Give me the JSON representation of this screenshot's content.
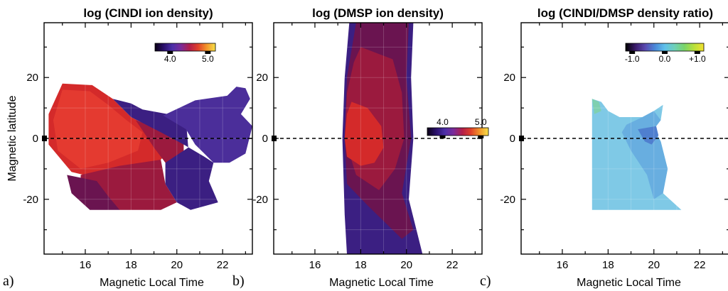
{
  "chart_data": [
    {
      "type": "heatmap",
      "panel_label": "a)",
      "title": "log (CINDI ion density)",
      "xlabel": "Magnetic Local Time",
      "ylabel": "Magnetic latitude",
      "xlim": [
        14.2,
        23.3
      ],
      "ylim": [
        -38,
        38
      ],
      "xticks": [
        "16",
        "18",
        "20",
        "22"
      ],
      "yticks": [
        "20",
        "0",
        "-20"
      ],
      "colorbar": {
        "ticks": [
          "4.0",
          "5.0"
        ],
        "range": [
          3.6,
          5.2
        ]
      },
      "regions": [
        {
          "level": 4.6,
          "color": "#d42a2a",
          "points": [
            [
              14.4,
              8
            ],
            [
              15.0,
              18
            ],
            [
              16.3,
              17.5
            ],
            [
              17.2,
              13
            ],
            [
              18.0,
              7
            ],
            [
              19.3,
              2
            ],
            [
              20.0,
              -1
            ],
            [
              19.3,
              -7
            ],
            [
              18.3,
              -9
            ],
            [
              16.5,
              -13
            ],
            [
              15.4,
              -11
            ],
            [
              14.4,
              -2
            ]
          ]
        },
        {
          "level": 4.8,
          "color": "#e43a30",
          "points": [
            [
              14.6,
              6
            ],
            [
              15.0,
              16
            ],
            [
              16.2,
              15.5
            ],
            [
              17.0,
              11
            ],
            [
              17.8,
              6
            ],
            [
              18.5,
              2
            ],
            [
              18.3,
              -4
            ],
            [
              17.0,
              -8
            ],
            [
              15.8,
              -10
            ],
            [
              14.8,
              -4
            ]
          ]
        },
        {
          "level": 4.4,
          "color": "#9b1a3e",
          "points": [
            [
              15.8,
              -12
            ],
            [
              17.5,
              -9
            ],
            [
              19.3,
              -7
            ],
            [
              19.5,
              -15
            ],
            [
              20.0,
              -21
            ],
            [
              19.3,
              -23.5
            ],
            [
              17.5,
              -23.5
            ],
            [
              16.5,
              -21
            ],
            [
              15.8,
              -16
            ]
          ]
        },
        {
          "level": 4.4,
          "color": "#9b1a3e",
          "points": [
            [
              18.2,
              6
            ],
            [
              19.3,
              3
            ],
            [
              20.3,
              -1
            ],
            [
              20.3,
              -6
            ],
            [
              19.5,
              -8
            ],
            [
              19.0,
              -3
            ]
          ]
        },
        {
          "level": 4.2,
          "color": "#6a1450",
          "points": [
            [
              15.2,
              -12
            ],
            [
              16.5,
              -14
            ],
            [
              17.0,
              -19
            ],
            [
              17.5,
              -23.5
            ],
            [
              16.2,
              -23.5
            ],
            [
              15.4,
              -18
            ]
          ]
        },
        {
          "level": 4.2,
          "color": "#6a1450",
          "points": [
            [
              19.6,
              -8
            ],
            [
              20.5,
              -5
            ],
            [
              21.2,
              -9
            ],
            [
              21.2,
              -13
            ],
            [
              20.2,
              -20
            ],
            [
              19.6,
              -15
            ]
          ]
        },
        {
          "level": 3.8,
          "color": "#3b1f82",
          "points": [
            [
              17.2,
              13
            ],
            [
              18.0,
              7
            ],
            [
              19.3,
              2
            ],
            [
              20.3,
              -2
            ],
            [
              21.2,
              -6
            ],
            [
              21.6,
              -8
            ],
            [
              21.4,
              -14
            ],
            [
              21.8,
              -21
            ],
            [
              20.6,
              -23.5
            ],
            [
              20.0,
              -21
            ],
            [
              19.5,
              -15
            ],
            [
              19.5,
              -8
            ],
            [
              20.5,
              -3
            ],
            [
              20.4,
              6
            ],
            [
              19.6,
              8
            ],
            [
              18.5,
              9.5
            ],
            [
              18.0,
              11.5
            ]
          ]
        },
        {
          "level": 3.9,
          "color": "#4b2e9a",
          "points": [
            [
              19.4,
              7.5
            ],
            [
              20.8,
              12.5
            ],
            [
              22.2,
              14
            ],
            [
              22.6,
              17
            ],
            [
              23.0,
              16.5
            ],
            [
              23.2,
              13
            ],
            [
              22.8,
              8
            ],
            [
              23.3,
              4
            ],
            [
              23.0,
              -5
            ],
            [
              22.3,
              -8
            ],
            [
              21.6,
              -8
            ],
            [
              21.2,
              -5
            ],
            [
              20.8,
              -2
            ],
            [
              20.4,
              3
            ]
          ]
        }
      ]
    },
    {
      "type": "heatmap",
      "panel_label": "b)",
      "title": "log (DMSP ion density)",
      "xlabel": "Magnetic Local Time",
      "ylabel": "",
      "xlim": [
        14.2,
        23.3
      ],
      "ylim": [
        -38,
        38
      ],
      "xticks": [
        "16",
        "18",
        "20",
        "22"
      ],
      "yticks": [
        "20",
        "0",
        "-20"
      ],
      "colorbar": {
        "ticks": [
          "4.0",
          "5.0"
        ],
        "range": [
          3.6,
          5.2
        ]
      },
      "regions": [
        {
          "level": 3.8,
          "color": "#3b1f82",
          "points": [
            [
              17.5,
              38
            ],
            [
              20.3,
              38
            ],
            [
              20.2,
              20
            ],
            [
              20.3,
              0
            ],
            [
              20.1,
              -20
            ],
            [
              20.7,
              -38
            ],
            [
              17.4,
              -38
            ],
            [
              17.3,
              -25
            ],
            [
              17.2,
              0
            ],
            [
              17.3,
              20
            ]
          ]
        },
        {
          "level": 4.2,
          "color": "#6a1450",
          "points": [
            [
              17.8,
              38
            ],
            [
              20.1,
              38
            ],
            [
              20.0,
              20
            ],
            [
              20.2,
              0
            ],
            [
              19.8,
              -18
            ],
            [
              20.3,
              -30
            ],
            [
              19.8,
              -33
            ],
            [
              18.3,
              -22
            ],
            [
              17.4,
              -15
            ],
            [
              17.3,
              0
            ],
            [
              17.4,
              20
            ]
          ]
        },
        {
          "level": 4.4,
          "color": "#9b1a3e",
          "points": [
            [
              18.0,
              30
            ],
            [
              19.4,
              26
            ],
            [
              19.8,
              15
            ],
            [
              19.9,
              0
            ],
            [
              19.5,
              -10
            ],
            [
              18.8,
              -17
            ],
            [
              17.8,
              -12
            ],
            [
              17.3,
              0
            ],
            [
              17.4,
              15
            ],
            [
              17.7,
              25
            ]
          ]
        },
        {
          "level": 4.6,
          "color": "#d42a2a",
          "points": [
            [
              17.6,
              12
            ],
            [
              18.3,
              10
            ],
            [
              18.9,
              4
            ],
            [
              19.0,
              -3
            ],
            [
              18.6,
              -8
            ],
            [
              18.0,
              -9
            ],
            [
              17.4,
              -6
            ],
            [
              17.3,
              0
            ],
            [
              17.4,
              8
            ]
          ]
        }
      ]
    },
    {
      "type": "heatmap",
      "panel_label": "c)",
      "title": "log (CINDI/DMSP density ratio)",
      "xlabel": "Magnetic Local Time",
      "ylabel": "",
      "xlim": [
        14.2,
        23.3
      ],
      "ylim": [
        -38,
        38
      ],
      "xticks": [
        "16",
        "18",
        "20",
        "22"
      ],
      "yticks": [
        "20",
        "0",
        "-20"
      ],
      "colorbar": {
        "ticks": [
          "-1.0",
          "0.0",
          "+1.0"
        ],
        "range": [
          -1.2,
          1.2
        ]
      },
      "regions": [
        {
          "level": 0.1,
          "color": "#7fc9e6",
          "points": [
            [
              17.3,
              13
            ],
            [
              17.7,
              12
            ],
            [
              18.0,
              9
            ],
            [
              18.5,
              7
            ],
            [
              19.5,
              7
            ],
            [
              20.0,
              9
            ],
            [
              20.4,
              11
            ],
            [
              20.3,
              6
            ],
            [
              20.0,
              3
            ],
            [
              20.3,
              -1
            ],
            [
              20.6,
              -10
            ],
            [
              20.4,
              -18
            ],
            [
              21.2,
              -23.5
            ],
            [
              17.3,
              -23.5
            ]
          ]
        },
        {
          "level": 0.0,
          "color": "#68aee0",
          "points": [
            [
              18.8,
              4.5
            ],
            [
              19.5,
              7
            ],
            [
              20.0,
              9
            ],
            [
              20.3,
              6
            ],
            [
              20.0,
              3
            ],
            [
              20.3,
              -1
            ],
            [
              20.6,
              -10
            ],
            [
              20.4,
              -18
            ],
            [
              20.0,
              -20
            ],
            [
              19.7,
              -12
            ],
            [
              19.0,
              -4
            ],
            [
              18.6,
              2
            ]
          ]
        },
        {
          "level": -0.1,
          "color": "#4f7fcf",
          "points": [
            [
              19.3,
              3
            ],
            [
              20.1,
              4
            ],
            [
              20.2,
              1
            ],
            [
              19.9,
              -2
            ],
            [
              19.6,
              -1
            ]
          ]
        },
        {
          "level": 0.3,
          "color": "#7fd0b0",
          "points": [
            [
              17.3,
              13
            ],
            [
              17.6,
              12
            ],
            [
              17.7,
              9
            ],
            [
              17.4,
              8
            ]
          ]
        }
      ]
    }
  ]
}
